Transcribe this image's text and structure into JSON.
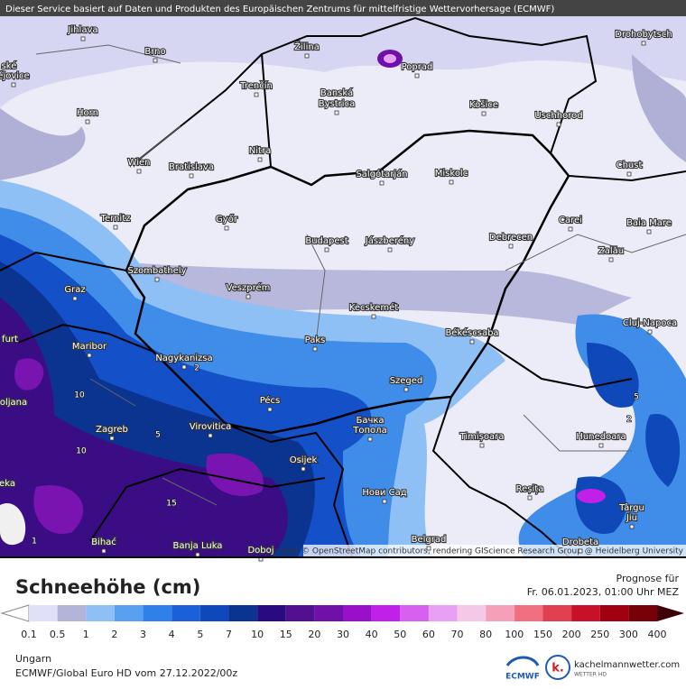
{
  "header": {
    "note": "Dieser Service basiert auf Daten und Produkten des Europäischen Zentrums für mittelfristige Wettervorhersage (ECMWF)"
  },
  "map": {
    "cities": [
      "Jihlava",
      "Brno",
      "Žilina",
      "Poprad",
      "Drohobytsch",
      "ské",
      "ějovice",
      "Trenčín",
      "Banská",
      "Bystrica",
      "Košice",
      "Uschhorod",
      "Horn",
      "Nitra",
      "Wien",
      "Bratislava",
      "Salgótarján",
      "Miskolc",
      "Chust",
      "Ternitz",
      "Győr",
      "Carei",
      "Baia Mare",
      "Budapest",
      "Jászberény",
      "Debrecen",
      "Szombathely",
      "Zalău",
      "Graz",
      "Veszprém",
      "Kecskemét",
      "Cluj-Napoca",
      "furt",
      "Maribor",
      "Paks",
      "Békéscsaba",
      "Nagykanizsa",
      "oljana",
      "Pécs",
      "Szeged",
      "Zagreb",
      "Virovitica",
      "Бачка",
      "Топола",
      "Timișoara",
      "Hunedoara",
      "Osijek",
      "eka",
      "Нови Сад",
      "Reșița",
      "Târgu",
      "Jiu",
      "Bihać",
      "Banja Luka",
      "Doboj",
      "Belgrad",
      "Drobeta"
    ],
    "contour_labels": [
      "2",
      "10",
      "5",
      "10",
      "15",
      "2",
      "5",
      "1"
    ],
    "attribution": "Map data © OpenStreetMap contributors, rendering GIScience Research Group @ Heidelberg University"
  },
  "legend": {
    "title": "Schneehöhe (cm)",
    "labels": [
      "0.1",
      "0.5",
      "1",
      "2",
      "3",
      "4",
      "5",
      "7",
      "10",
      "15",
      "20",
      "30",
      "40",
      "50",
      "60",
      "70",
      "80",
      "100",
      "150",
      "200",
      "250",
      "300",
      "400"
    ],
    "colors": [
      "#e0e0f8",
      "#b4b4d8",
      "#8fc0f5",
      "#5aa0f0",
      "#2f80e8",
      "#1a60d8",
      "#0f48b8",
      "#0a3490",
      "#2a0a80",
      "#50108f",
      "#7010a8",
      "#9a10c8",
      "#c020e8",
      "#d860f0",
      "#e8a0f5",
      "#f5c8e8",
      "#f5a0b8",
      "#f07080",
      "#e04050",
      "#c81028",
      "#a00010",
      "#780008"
    ]
  },
  "forecast": {
    "label": "Prognose für",
    "date": "Fr. 06.01.2023, 01:00 Uhr MEZ"
  },
  "footer": {
    "region": "Ungarn",
    "model": "ECMWF/Global Euro HD vom  27.12.2022/00z",
    "ecmwf": "ECMWF",
    "logo_letter": "k.",
    "site": "kachelmannwetter.com",
    "site_sub": "WETTER HD"
  }
}
